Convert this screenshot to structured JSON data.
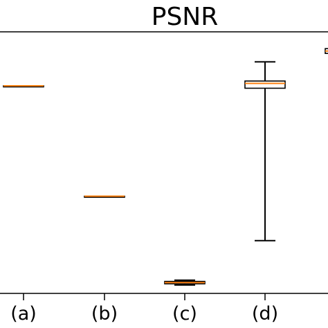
{
  "chart_data": {
    "type": "boxplot",
    "title": "PSNR",
    "xlabel": "",
    "ylabel": "",
    "categories": [
      "(a)",
      "(b)",
      "(c)",
      "(d)",
      ""
    ],
    "series": [
      {
        "boxes": [
          {
            "whisker_low": 28.4,
            "q1": 28.4,
            "median": 28.4,
            "q3": 28.4,
            "whisker_high": 28.4
          },
          {
            "whisker_low": 23.8,
            "q1": 23.8,
            "median": 23.8,
            "q3": 23.8,
            "whisker_high": 23.8
          },
          {
            "whisker_low": 20.1,
            "q1": 20.15,
            "median": 20.2,
            "q3": 20.25,
            "whisker_high": 20.3
          },
          {
            "whisker_low": 21.95,
            "q1": 28.3,
            "median": 28.5,
            "q3": 28.6,
            "whisker_high": 29.4
          },
          {
            "whisker_low": 29.75,
            "q1": 29.75,
            "median": 29.85,
            "q3": 29.95,
            "whisker_high": 29.95
          }
        ]
      }
    ],
    "yticks_shown": false,
    "grid": false,
    "colors": {
      "box": "#000000",
      "median": "#ff7f0e",
      "axis": "#000000"
    }
  }
}
